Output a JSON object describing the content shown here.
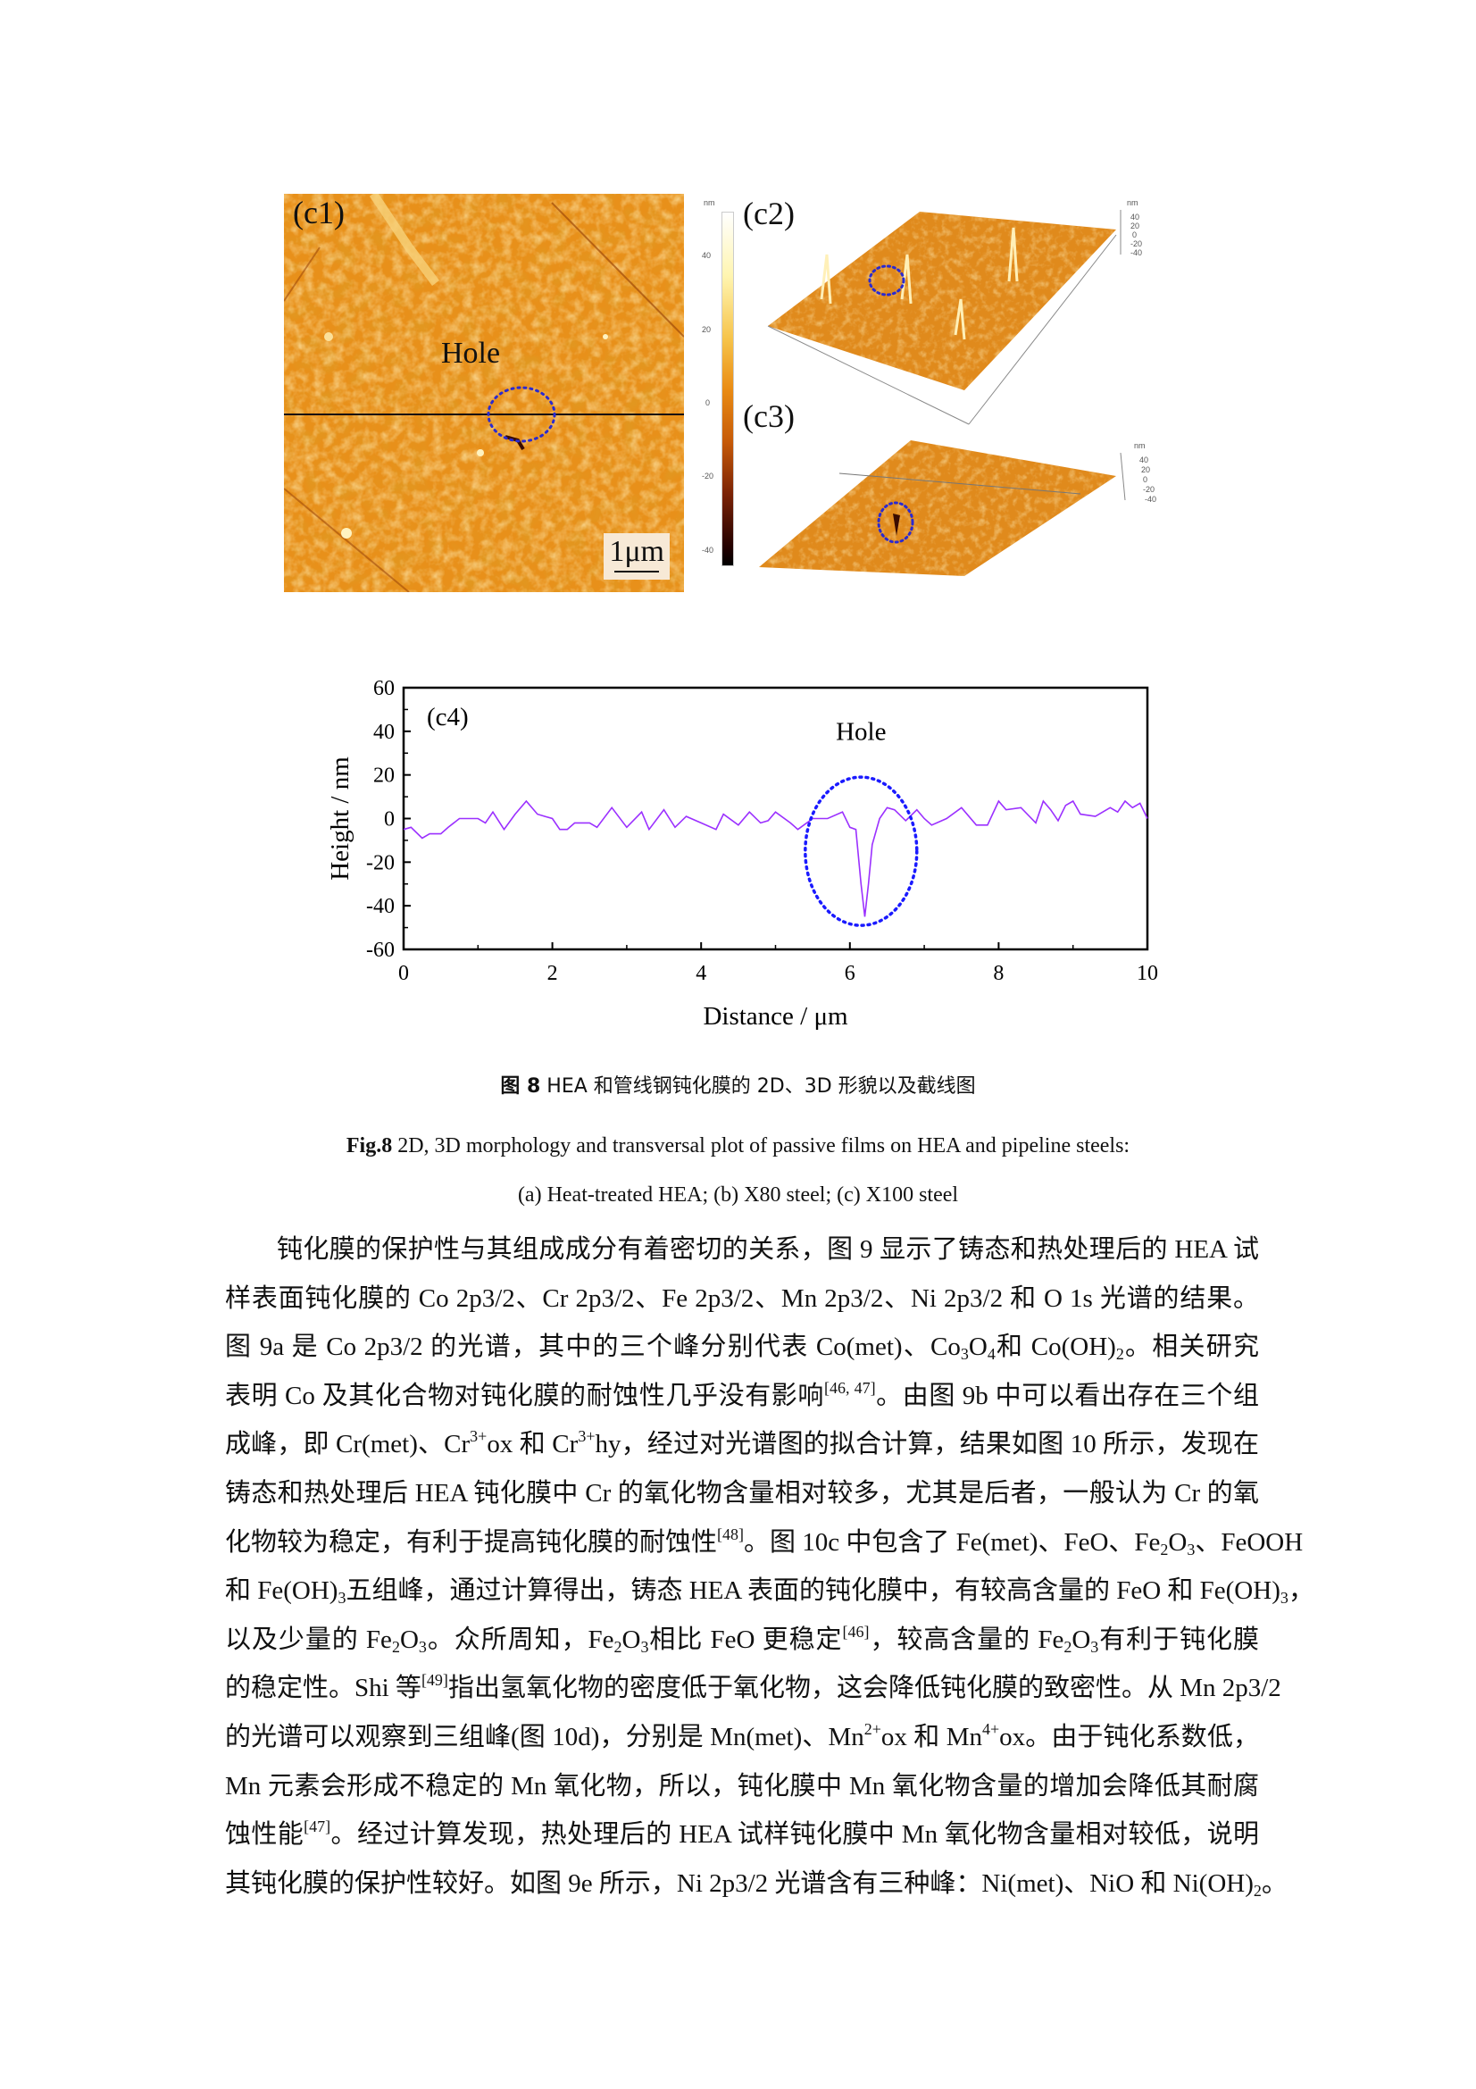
{
  "figure": {
    "panels": {
      "c1": "(c1)",
      "c2": "(c2)",
      "c3": "(c3)",
      "c4": "(c4)"
    },
    "hole_label": "Hole",
    "scale_bar": "1μm",
    "colorbar": {
      "unit": "nm",
      "ticks": [
        "40",
        "20",
        "0",
        "-20",
        "-40"
      ]
    },
    "c2_axis": {
      "unit": "nm",
      "ticks": [
        "40",
        "20",
        "0",
        "-20",
        "-40"
      ]
    },
    "c3_axis": {
      "unit": "nm",
      "ticks": [
        "40",
        "20",
        "0",
        "-20",
        "-40"
      ]
    },
    "colors": {
      "afm_orange": "#e8901a",
      "circle": "#1a1aff",
      "profile": "#9b30ff"
    }
  },
  "chart_data": {
    "type": "line",
    "panel_label": "(c4)",
    "xlabel": "Distance / μm",
    "ylabel": "Height / nm",
    "xlim": [
      0,
      10
    ],
    "ylim": [
      -60,
      60
    ],
    "xticks": [
      0,
      2,
      4,
      6,
      8,
      10
    ],
    "yticks": [
      -60,
      -40,
      -20,
      0,
      20,
      40,
      60
    ],
    "grid": false,
    "annotation": {
      "text": "Hole",
      "ellipse_center": [
        6.15,
        -15
      ],
      "ellipse_radii": [
        0.75,
        34
      ]
    },
    "series": [
      {
        "color": "#9b30ff",
        "x": [
          0,
          0.1,
          0.25,
          0.35,
          0.5,
          0.6,
          0.75,
          0.9,
          1.0,
          1.1,
          1.2,
          1.35,
          1.5,
          1.65,
          1.8,
          1.9,
          2.0,
          2.1,
          2.2,
          2.3,
          2.5,
          2.6,
          2.8,
          3.0,
          3.2,
          3.3,
          3.5,
          3.65,
          3.8,
          4.0,
          4.2,
          4.3,
          4.5,
          4.65,
          4.8,
          4.9,
          5.0,
          5.2,
          5.3,
          5.5,
          5.7,
          5.9,
          6.0,
          6.08,
          6.15,
          6.2,
          6.25,
          6.3,
          6.4,
          6.5,
          6.6,
          6.75,
          6.9,
          7.0,
          7.1,
          7.3,
          7.5,
          7.7,
          7.85,
          8.0,
          8.1,
          8.3,
          8.5,
          8.6,
          8.7,
          8.8,
          8.9,
          9.0,
          9.1,
          9.3,
          9.5,
          9.6,
          9.7,
          9.8,
          9.9,
          10
        ],
        "y": [
          -5,
          -4,
          -9,
          -7,
          -7,
          -4,
          0,
          0,
          0,
          -2,
          3,
          -5,
          2,
          8,
          2,
          1,
          0,
          -5,
          -5,
          -2,
          -2,
          -4,
          5,
          -4,
          3,
          -5,
          4,
          -4,
          1,
          -2,
          -5,
          2,
          -3,
          3,
          -2,
          -1,
          3,
          -2,
          -5,
          0,
          0,
          3,
          -4,
          -5,
          -30,
          -45,
          -30,
          -12,
          0,
          5,
          4,
          -1,
          4,
          0,
          -3,
          0,
          5,
          -3,
          -3,
          8,
          4,
          5,
          -2,
          8,
          4,
          -1,
          6,
          8,
          2,
          1,
          5,
          3,
          8,
          5,
          7,
          0
        ]
      }
    ]
  },
  "caption": {
    "cn_prefix": "图 8",
    "cn_text": "HEA 和管线钢钝化膜的 2D、3D 形貌以及截线图",
    "en_prefix": "Fig.8",
    "en_line1": "2D, 3D morphology and transversal plot of passive films on HEA and pipeline steels:",
    "en_line2": "(a) Heat-treated HEA; (b) X80 steel; (c) X100 steel"
  },
  "body": {
    "lines": [
      [
        [
          "钝化膜的保护性与其组成成分有着密切的关系，图 9 显示了铸态和热处理后的 HEA 试"
        ]
      ],
      [
        [
          "样表面钝化膜的 Co 2p3/2、Cr 2p3/2、Fe 2p3/2、Mn 2p3/2、Ni 2p3/2 和 O 1s 光谱的结果。"
        ]
      ],
      [
        [
          "图 9a 是 Co 2p3/2 的光谱，其中的三个峰分别代表 Co(met)、Co"
        ],
        [
          "3",
          "sub"
        ],
        [
          "O"
        ],
        [
          "4",
          "sub"
        ],
        [
          "和 Co(OH)"
        ],
        [
          "2",
          "sub"
        ],
        [
          "。相关研究"
        ]
      ],
      [
        [
          "表明 Co 及其化合物对钝化膜的耐蚀性几乎没有影响"
        ],
        [
          "[46, 47]",
          "sup"
        ],
        [
          "。由图 9b 中可以看出存在三个组"
        ]
      ],
      [
        [
          "成峰，即 Cr(met)、Cr"
        ],
        [
          "3+",
          "sup"
        ],
        [
          "ox 和 Cr"
        ],
        [
          "3+",
          "sup"
        ],
        [
          "hy，经过对光谱图的拟合计算，结果如图 10 所示，发现在"
        ]
      ],
      [
        [
          "铸态和热处理后 HEA 钝化膜中 Cr 的氧化物含量相对较多，尤其是后者，一般认为 Cr 的氧"
        ]
      ],
      [
        [
          "化物较为稳定，有利于提高钝化膜的耐蚀性"
        ],
        [
          "[48]",
          "sup"
        ],
        [
          "。图 10c 中包含了 Fe(met)、FeO、Fe"
        ],
        [
          "2",
          "sub"
        ],
        [
          "O"
        ],
        [
          "3",
          "sub"
        ],
        [
          "、FeOOH"
        ]
      ],
      [
        [
          "和 Fe(OH)"
        ],
        [
          "3",
          "sub"
        ],
        [
          "五组峰，通过计算得出，铸态 HEA 表面的钝化膜中，有较高含量的 FeO 和 Fe(OH)"
        ],
        [
          "3",
          "sub"
        ],
        [
          "，"
        ]
      ],
      [
        [
          "以及少量的 Fe"
        ],
        [
          "2",
          "sub"
        ],
        [
          "O"
        ],
        [
          "3",
          "sub"
        ],
        [
          "。众所周知，Fe"
        ],
        [
          "2",
          "sub"
        ],
        [
          "O"
        ],
        [
          "3",
          "sub"
        ],
        [
          "相比 FeO 更稳定"
        ],
        [
          "[46]",
          "sup"
        ],
        [
          "，较高含量的 Fe"
        ],
        [
          "2",
          "sub"
        ],
        [
          "O"
        ],
        [
          "3",
          "sub"
        ],
        [
          "有利于钝化膜"
        ]
      ],
      [
        [
          "的稳定性。Shi 等"
        ],
        [
          "[49]",
          "sup"
        ],
        [
          "指出氢氧化物的密度低于氧化物，这会降低钝化膜的致密性。从 Mn 2p3/2"
        ]
      ],
      [
        [
          "的光谱可以观察到三组峰(图 10d)，分别是 Mn(met)、Mn"
        ],
        [
          "2+",
          "sup"
        ],
        [
          "ox 和 Mn"
        ],
        [
          "4+",
          "sup"
        ],
        [
          "ox。由于钝化系数低，"
        ]
      ],
      [
        [
          "Mn 元素会形成不稳定的 Mn 氧化物，所以，钝化膜中 Mn 氧化物含量的增加会降低其耐腐"
        ]
      ],
      [
        [
          "蚀性能"
        ],
        [
          "[47]",
          "sup"
        ],
        [
          "。经过计算发现，热处理后的 HEA 试样钝化膜中 Mn 氧化物含量相对较低，说明"
        ]
      ],
      [
        [
          "其钝化膜的保护性较好。如图 9e 所示，Ni 2p3/2 光谱含有三种峰：Ni(met)、NiO 和 Ni(OH)"
        ],
        [
          "2",
          "sub"
        ],
        [
          "。"
        ]
      ]
    ]
  }
}
